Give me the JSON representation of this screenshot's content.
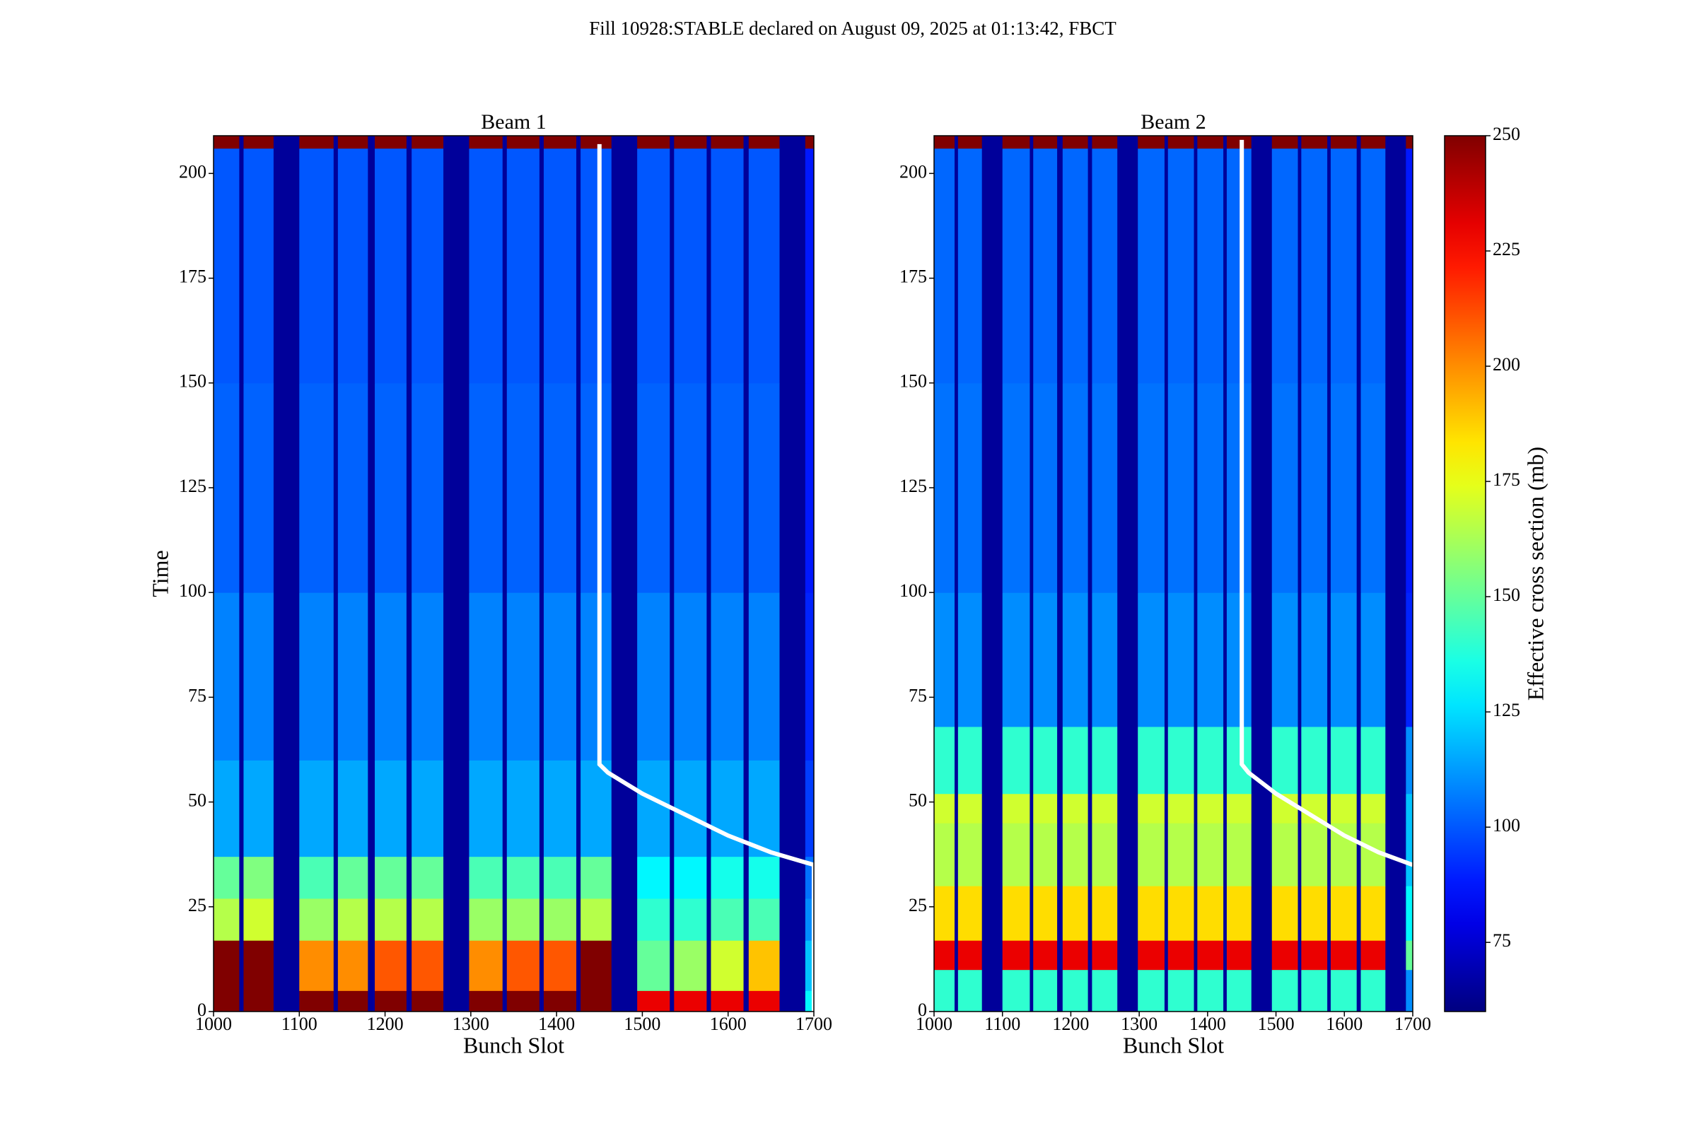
{
  "figure": {
    "title": "Fill 10928:STABLE declared on August 09, 2025 at 01:13:42, FBCT"
  },
  "colorbar": {
    "label": "Effective cross section (mb)",
    "colormap": "jet",
    "clim": [
      60,
      250
    ],
    "ticks": [
      75,
      100,
      125,
      150,
      175,
      200,
      225,
      250
    ]
  },
  "chart_data": [
    {
      "type": "heatmap",
      "title": "Beam 1",
      "xlabel": "Bunch Slot",
      "ylabel": "Time",
      "xlim": [
        1000,
        1700
      ],
      "ylim": [
        0,
        209
      ],
      "xticks": [
        1000,
        1100,
        1200,
        1300,
        1400,
        1500,
        1600,
        1700
      ],
      "yticks": [
        0,
        25,
        50,
        75,
        100,
        125,
        150,
        175,
        200
      ],
      "x_edges": [
        1000,
        1030,
        1035,
        1070,
        1100,
        1140,
        1145,
        1180,
        1188,
        1225,
        1231,
        1268,
        1298,
        1337,
        1342,
        1380,
        1385,
        1423,
        1428,
        1464,
        1494,
        1532,
        1537,
        1575,
        1580,
        1618,
        1624,
        1660,
        1690,
        1700
      ],
      "y_edges": [
        0,
        5,
        17,
        27,
        37,
        60,
        100,
        150,
        206,
        209
      ],
      "z": [
        [
          250,
          65,
          250,
          65,
          250,
          65,
          250,
          65,
          250,
          65,
          250,
          65,
          250,
          65,
          250,
          65,
          250,
          65,
          250,
          65,
          230,
          65,
          230,
          65,
          230,
          65,
          230,
          65,
          130
        ],
        [
          250,
          65,
          250,
          65,
          200,
          65,
          200,
          65,
          210,
          65,
          210,
          65,
          200,
          65,
          210,
          65,
          210,
          65,
          250,
          65,
          150,
          65,
          160,
          65,
          170,
          65,
          190,
          65,
          120
        ],
        [
          165,
          65,
          170,
          65,
          160,
          65,
          165,
          65,
          165,
          65,
          165,
          65,
          160,
          65,
          160,
          65,
          160,
          65,
          165,
          65,
          140,
          65,
          140,
          65,
          145,
          65,
          145,
          65,
          110
        ],
        [
          150,
          65,
          155,
          65,
          145,
          65,
          150,
          65,
          150,
          65,
          150,
          65,
          145,
          65,
          145,
          65,
          145,
          65,
          150,
          65,
          130,
          65,
          130,
          65,
          135,
          65,
          135,
          65,
          105
        ],
        [
          115,
          65,
          115,
          65,
          115,
          65,
          115,
          65,
          115,
          65,
          115,
          65,
          115,
          65,
          115,
          65,
          115,
          65,
          115,
          65,
          115,
          65,
          115,
          65,
          115,
          65,
          115,
          65,
          95
        ],
        [
          108,
          65,
          108,
          65,
          108,
          65,
          108,
          65,
          108,
          65,
          108,
          65,
          108,
          65,
          108,
          65,
          108,
          65,
          108,
          65,
          108,
          65,
          108,
          65,
          108,
          65,
          108,
          65,
          90
        ],
        [
          102,
          65,
          102,
          65,
          102,
          65,
          102,
          65,
          102,
          65,
          102,
          65,
          102,
          65,
          102,
          65,
          102,
          65,
          102,
          65,
          102,
          65,
          102,
          65,
          102,
          65,
          102,
          65,
          88
        ],
        [
          100,
          65,
          100,
          65,
          100,
          65,
          100,
          65,
          100,
          65,
          100,
          65,
          100,
          65,
          100,
          65,
          100,
          65,
          100,
          65,
          100,
          65,
          100,
          65,
          100,
          65,
          100,
          65,
          88
        ],
        [
          250,
          65,
          250,
          65,
          250,
          65,
          250,
          65,
          250,
          65,
          250,
          65,
          250,
          65,
          250,
          65,
          250,
          65,
          250,
          65,
          250,
          65,
          250,
          65,
          250,
          65,
          250,
          65,
          250
        ]
      ],
      "line": {
        "color": "#ffffff",
        "x": [
          1450,
          1450,
          1460,
          1500,
          1550,
          1600,
          1650,
          1700,
          1700
        ],
        "y": [
          207,
          59,
          57,
          52,
          47,
          42,
          38,
          35,
          0
        ]
      }
    },
    {
      "type": "heatmap",
      "title": "Beam 2",
      "xlabel": "Bunch Slot",
      "xlim": [
        1000,
        1700
      ],
      "ylim": [
        0,
        209
      ],
      "xticks": [
        1000,
        1100,
        1200,
        1300,
        1400,
        1500,
        1600,
        1700
      ],
      "yticks": [
        0,
        25,
        50,
        75,
        100,
        125,
        150,
        175,
        200
      ],
      "x_edges": [
        1000,
        1030,
        1035,
        1070,
        1100,
        1140,
        1145,
        1180,
        1188,
        1225,
        1231,
        1268,
        1298,
        1337,
        1342,
        1380,
        1385,
        1423,
        1428,
        1464,
        1494,
        1532,
        1537,
        1575,
        1580,
        1618,
        1624,
        1660,
        1690,
        1700
      ],
      "y_edges": [
        0,
        10,
        17,
        30,
        45,
        52,
        68,
        100,
        150,
        206,
        209
      ],
      "z": [
        [
          140,
          65,
          140,
          65,
          140,
          65,
          140,
          65,
          140,
          65,
          140,
          65,
          140,
          65,
          140,
          65,
          140,
          65,
          140,
          65,
          140,
          65,
          140,
          65,
          140,
          65,
          140,
          65,
          110
        ],
        [
          230,
          65,
          230,
          65,
          230,
          65,
          230,
          65,
          230,
          65,
          230,
          65,
          230,
          65,
          230,
          65,
          230,
          65,
          230,
          65,
          230,
          65,
          230,
          65,
          230,
          65,
          230,
          65,
          150
        ],
        [
          185,
          65,
          185,
          65,
          185,
          65,
          185,
          65,
          185,
          65,
          185,
          65,
          185,
          65,
          185,
          65,
          185,
          65,
          185,
          65,
          185,
          65,
          185,
          65,
          185,
          65,
          185,
          65,
          130
        ],
        [
          165,
          65,
          165,
          65,
          165,
          65,
          165,
          65,
          165,
          65,
          165,
          65,
          165,
          65,
          165,
          65,
          165,
          65,
          165,
          65,
          165,
          65,
          165,
          65,
          165,
          65,
          165,
          65,
          120
        ],
        [
          170,
          65,
          170,
          65,
          170,
          65,
          170,
          65,
          170,
          65,
          170,
          65,
          170,
          65,
          170,
          65,
          170,
          65,
          170,
          65,
          170,
          65,
          170,
          65,
          170,
          65,
          170,
          65,
          120
        ],
        [
          140,
          65,
          140,
          65,
          140,
          65,
          140,
          65,
          140,
          65,
          140,
          65,
          140,
          65,
          140,
          65,
          140,
          65,
          140,
          65,
          140,
          65,
          140,
          65,
          140,
          65,
          140,
          65,
          110
        ],
        [
          110,
          65,
          110,
          65,
          110,
          65,
          110,
          65,
          110,
          65,
          110,
          65,
          110,
          65,
          110,
          65,
          110,
          65,
          110,
          65,
          110,
          65,
          110,
          65,
          110,
          65,
          110,
          65,
          90
        ],
        [
          105,
          65,
          105,
          65,
          105,
          65,
          105,
          65,
          105,
          65,
          105,
          65,
          105,
          65,
          105,
          65,
          105,
          65,
          105,
          65,
          105,
          65,
          105,
          65,
          105,
          65,
          105,
          65,
          88
        ],
        [
          103,
          65,
          103,
          65,
          103,
          65,
          103,
          65,
          103,
          65,
          103,
          65,
          103,
          65,
          103,
          65,
          103,
          65,
          103,
          65,
          103,
          65,
          103,
          65,
          103,
          65,
          103,
          65,
          88
        ],
        [
          250,
          65,
          250,
          65,
          250,
          65,
          250,
          65,
          250,
          65,
          250,
          65,
          250,
          65,
          250,
          65,
          250,
          65,
          250,
          65,
          250,
          65,
          250,
          65,
          250,
          65,
          250,
          65,
          250
        ]
      ],
      "line": {
        "color": "#ffffff",
        "x": [
          1450,
          1450,
          1460,
          1500,
          1550,
          1600,
          1650,
          1700
        ],
        "y": [
          208,
          59,
          57,
          52,
          47,
          42,
          38,
          35
        ]
      }
    }
  ]
}
